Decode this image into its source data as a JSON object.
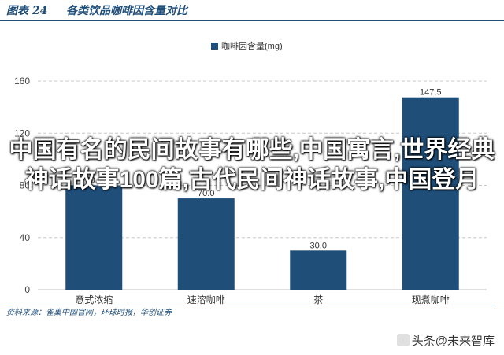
{
  "figure": {
    "label": "图表 24",
    "title": "各类饮品咖啡因含量对比",
    "source": "资料来源：雀巢中国官网，环球时报，华创证券",
    "color_header": "#1f4e79"
  },
  "overlay_text": "中国有名的民间故事有哪些,中国寓言,世界经典神话故事100篇,古代民间神话故事,中国登月",
  "watermark": "头条@未来智库",
  "chart_data": {
    "type": "bar",
    "categories": [
      "意式浓缩",
      "速溶咖啡",
      "茶",
      "现煮咖啡"
    ],
    "series": [
      {
        "name": "咖啡因含量(mg)",
        "values": [
          80.0,
          70.0,
          30.0,
          147.5
        ],
        "labels": [
          "80.0",
          "70.0",
          "30.0",
          "147.5"
        ]
      }
    ],
    "y_ticks": [
      0,
      40,
      80,
      120,
      160
    ],
    "ylim": [
      0,
      160
    ],
    "grid": "horizontal dashed",
    "legend": "top-center",
    "bar_color": "#1f4e79"
  }
}
